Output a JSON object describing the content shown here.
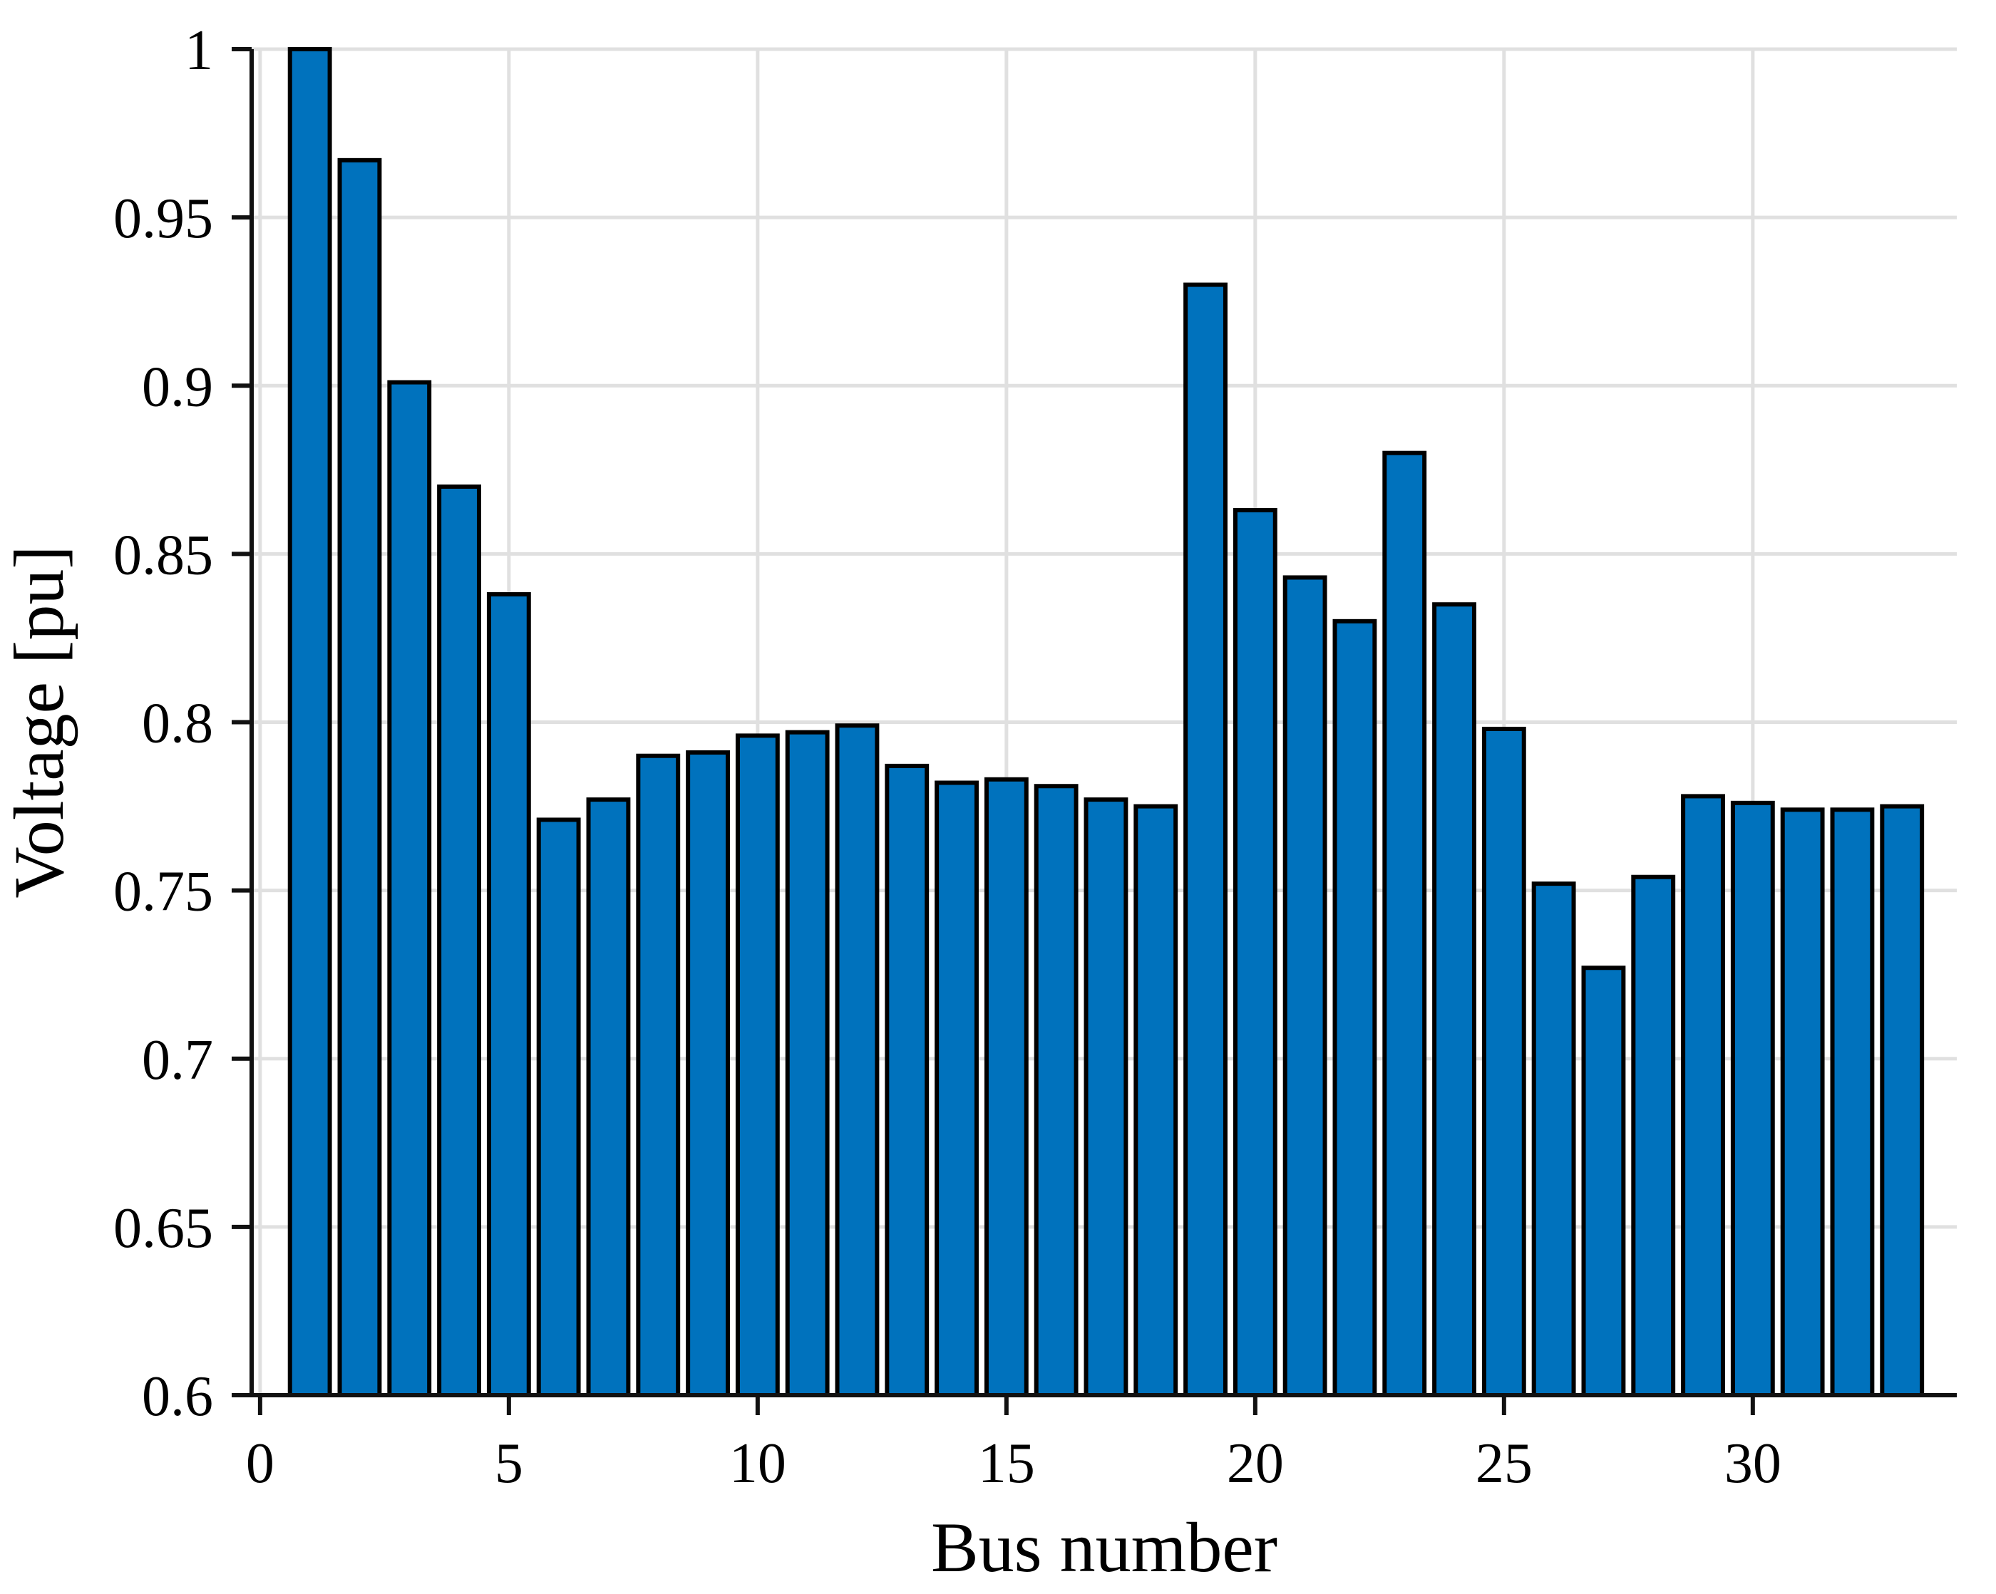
{
  "figure": {
    "background": "#ffffff"
  },
  "chart_data": {
    "type": "bar",
    "title": "",
    "xlabel": "Bus number",
    "ylabel": "Voltage [pu]",
    "categories": [
      1,
      2,
      3,
      4,
      5,
      6,
      7,
      8,
      9,
      10,
      11,
      12,
      13,
      14,
      15,
      16,
      17,
      18,
      19,
      20,
      21,
      22,
      23,
      24,
      25,
      26,
      27,
      28,
      29,
      30,
      31,
      32,
      33
    ],
    "values": [
      1.0,
      0.967,
      0.901,
      0.87,
      0.838,
      0.771,
      0.777,
      0.79,
      0.791,
      0.796,
      0.797,
      0.799,
      0.787,
      0.782,
      0.783,
      0.781,
      0.777,
      0.775,
      0.93,
      0.863,
      0.843,
      0.83,
      0.88,
      0.835,
      0.798,
      0.752,
      0.727,
      0.754,
      0.778,
      0.776,
      0.774,
      0.774,
      0.775
    ],
    "xlim": [
      -0.17,
      34.1
    ],
    "ylim": [
      0.6,
      1.0
    ],
    "xticks": [
      0,
      5,
      10,
      15,
      20,
      25,
      30
    ],
    "xtick_labels": [
      "0",
      "5",
      "10",
      "15",
      "20",
      "25",
      "30"
    ],
    "yticks": [
      0.6,
      0.65,
      0.7,
      0.75,
      0.8,
      0.85,
      0.9,
      0.95,
      1.0
    ],
    "ytick_labels": [
      "0.6",
      "0.65",
      "0.7",
      "0.75",
      "0.8",
      "0.85",
      "0.9",
      "0.95",
      "1"
    ],
    "bar_width": 0.8,
    "grid": true,
    "legend_position": "none",
    "colors": {
      "bar_fill": "#0072BD",
      "bar_edge": "#000000",
      "grid": "#E0E0E0",
      "axis": "#111111",
      "text": "#000000",
      "background": "#ffffff"
    }
  }
}
